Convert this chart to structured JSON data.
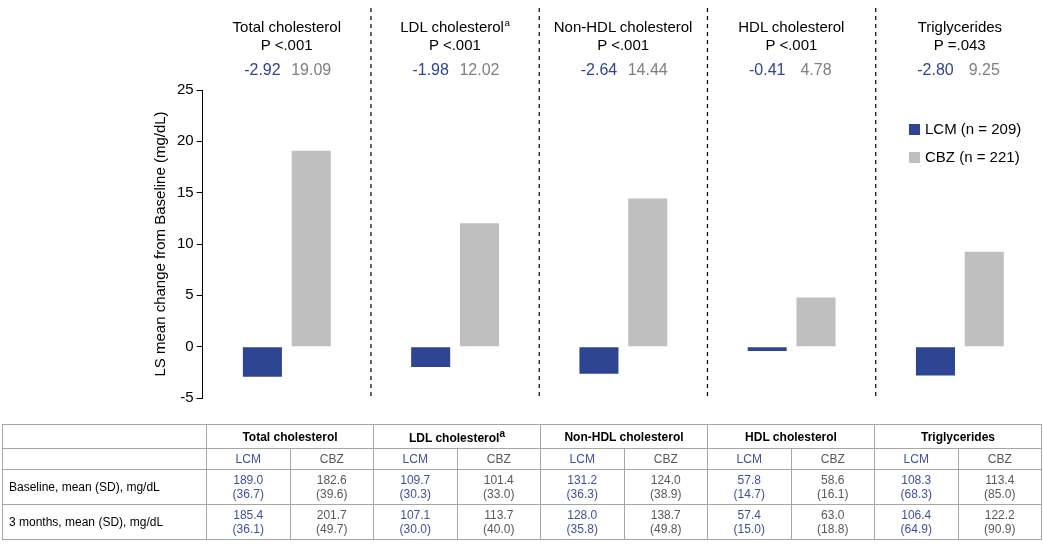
{
  "chart_data": [
    {
      "type": "bar",
      "ylabel": "LS mean change from Baseline (mg/dL)",
      "categories": [
        "Total cholesterol",
        "LDL cholesterol$^{a}$",
        "Non-HDL cholesterol",
        "HDL cholesterol",
        "Triglycerides"
      ],
      "series": [
        {
          "name": "LCM (n = 209)",
          "color": "#2e4593",
          "values": [
            -2.92,
            -1.98,
            -2.64,
            -0.41,
            -2.8
          ]
        },
        {
          "name": "CBZ (n = 221)",
          "color": "#bfbfbf",
          "values": [
            19.09,
            12.02,
            14.44,
            4.78,
            9.25
          ]
        }
      ],
      "annotations": [
        "P <.001",
        "-2.92",
        "19.09",
        "P <.001",
        "-1.98",
        "12.02",
        "P <.001",
        "-2.64",
        "14.44",
        "P <.001",
        "-0.41",
        "4.78",
        "P =.043",
        "-2.80",
        "9.25"
      ],
      "ylim": [
        -5,
        25
      ],
      "yticks": [
        -5,
        0,
        5,
        10,
        15,
        20,
        25
      ],
      "grid": "x",
      "legend": "top right"
    },
    {
      "type": "other",
      "annotations": [
        "Total cholesterol",
        "LDL cholesterol$^{a}$",
        "Non-HDL cholesterol",
        "HDL cholesterol",
        "Triglycerides"
      ],
      "categories": [
        "LCM",
        "CBZ",
        "LCM",
        "CBZ",
        "LCM",
        "CBZ",
        "LCM",
        "CBZ",
        "LCM",
        "CBZ"
      ],
      "colors": [
        "#3f51a0",
        "#595959",
        "#3f51a0",
        "#595959",
        "#3f51a0",
        "#595959",
        "#3f51a0",
        "#595959",
        "#3f51a0",
        "#595959"
      ],
      "y_categories": [
        "Baseline, mean (SD), mg/dL",
        "3 months, mean (SD), mg/dL"
      ],
      "cell_labels": [
        [
          "189.0\n(36.7)",
          "182.6\n(39.6)",
          "109.7\n(30.3)",
          "101.4\n(33.0)",
          "131.2\n(36.3)",
          "124.0\n(38.9)",
          "57.8\n(14.7)",
          "58.6\n(16.1)",
          "108.3\n(68.3)",
          "113.4\n(85.0)"
        ],
        [
          "185.4\n(36.1)",
          "201.7\n(49.7)",
          "107.1\n(30.0)",
          "113.7\n(40.0)",
          "128.0\n(35.8)",
          "138.7\n(49.8)",
          "57.4\n(15.0)",
          "63.0\n(18.8)",
          "106.4\n(64.9)",
          "122.2\n(90.9)"
        ]
      ]
    }
  ]
}
